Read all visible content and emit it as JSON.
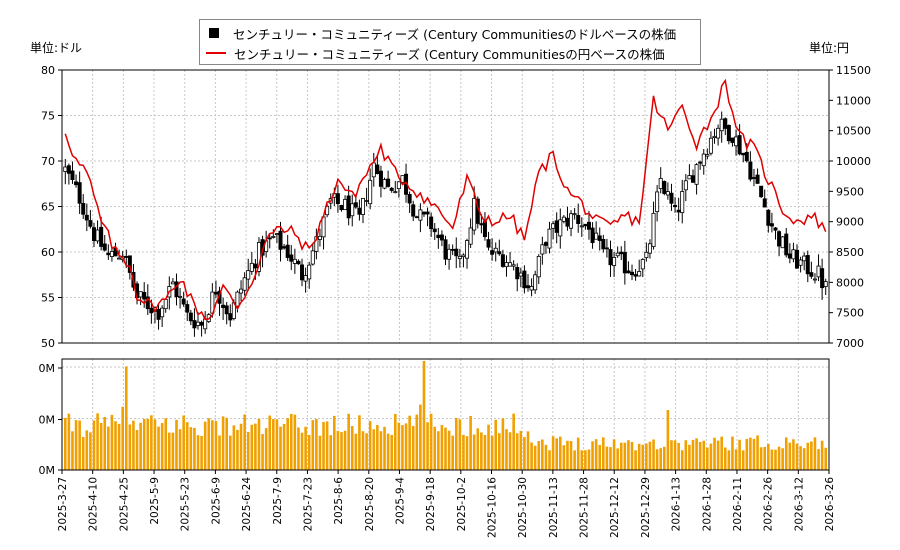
{
  "legend": {
    "usd_label": "センチュリー・コミュニティーズ (Century Communitiesのドルベースの株価",
    "jpy_label": "センチュリー・コミュニティーズ (Century Communitiesの円ベースの株価"
  },
  "units": {
    "left": "単位:ドル",
    "right": "単位:円"
  },
  "colors": {
    "price_red": "#e00000",
    "candle": "#000000",
    "volume": "#f0a000",
    "grid": "#c8c8c8"
  },
  "chart_data": {
    "type": "line",
    "title": "",
    "x_tick_labels": [
      "2025-3-27",
      "2025-4-10",
      "2025-4-25",
      "2025-5-9",
      "2025-5-23",
      "2025-6-9",
      "2025-6-24",
      "2025-7-9",
      "2025-7-23",
      "2025-8-6",
      "2025-8-20",
      "2025-9-4",
      "2025-9-18",
      "2025-10-2",
      "2025-10-16",
      "2025-10-30",
      "2025-11-13",
      "2025-11-28",
      "2025-12-12",
      "2025-12-29",
      "2026-1-13",
      "2026-1-28",
      "2026-2-11",
      "2026-2-26",
      "2026-3-12",
      "2026-3-26"
    ],
    "y_left": {
      "label": "単位:ドル",
      "ylim": [
        50,
        80
      ],
      "ticks": [
        50,
        55,
        60,
        65,
        70,
        75,
        80
      ]
    },
    "y_right": {
      "label": "単位:円",
      "ylim": [
        7000,
        11500
      ],
      "ticks": [
        7000,
        7500,
        8000,
        8500,
        9000,
        9500,
        10000,
        10500,
        11000,
        11500
      ]
    },
    "volume_axis": {
      "tick_labels": [
        "0M",
        "0M",
        "0M"
      ]
    },
    "usd_keypoints": [
      [
        0,
        69.0
      ],
      [
        4,
        66.0
      ],
      [
        8,
        62.0
      ],
      [
        12,
        59.5
      ],
      [
        16,
        60.0
      ],
      [
        20,
        55.0
      ],
      [
        26,
        53.5
      ],
      [
        30,
        56.5
      ],
      [
        34,
        53.0
      ],
      [
        38,
        52.0
      ],
      [
        42,
        56.0
      ],
      [
        46,
        53.0
      ],
      [
        50,
        57.0
      ],
      [
        54,
        60.0
      ],
      [
        58,
        61.5
      ],
      [
        62,
        60.0
      ],
      [
        66,
        57.5
      ],
      [
        70,
        61.0
      ],
      [
        74,
        65.5
      ],
      [
        78,
        65.0
      ],
      [
        82,
        63.5
      ],
      [
        86,
        69.5
      ],
      [
        90,
        67.0
      ],
      [
        94,
        68.0
      ],
      [
        98,
        64.0
      ],
      [
        102,
        63.0
      ],
      [
        106,
        60.0
      ],
      [
        110,
        58.5
      ],
      [
        114,
        65.0
      ],
      [
        118,
        60.0
      ],
      [
        122,
        59.5
      ],
      [
        126,
        58.0
      ],
      [
        130,
        56.0
      ],
      [
        134,
        61.5
      ],
      [
        138,
        63.0
      ],
      [
        142,
        64.0
      ],
      [
        146,
        62.5
      ],
      [
        150,
        59.5
      ],
      [
        154,
        59.0
      ],
      [
        158,
        58.0
      ],
      [
        162,
        59.0
      ],
      [
        166,
        68.0
      ],
      [
        170,
        64.0
      ],
      [
        174,
        68.0
      ],
      [
        178,
        71.0
      ],
      [
        182,
        74.0
      ],
      [
        186,
        73.0
      ],
      [
        190,
        70.0
      ],
      [
        194,
        66.0
      ],
      [
        198,
        62.0
      ],
      [
        202,
        59.5
      ],
      [
        206,
        58.5
      ],
      [
        210,
        57.5
      ],
      [
        212,
        56.0
      ]
    ],
    "jpy_keypoints": [
      [
        0,
        10500
      ],
      [
        3,
        10000
      ],
      [
        6,
        9800
      ],
      [
        10,
        9000
      ],
      [
        14,
        8500
      ],
      [
        18,
        8300
      ],
      [
        20,
        7800
      ],
      [
        24,
        7600
      ],
      [
        28,
        7700
      ],
      [
        32,
        8100
      ],
      [
        36,
        7600
      ],
      [
        40,
        7400
      ],
      [
        44,
        7900
      ],
      [
        48,
        7600
      ],
      [
        52,
        8000
      ],
      [
        56,
        8700
      ],
      [
        60,
        8900
      ],
      [
        64,
        8800
      ],
      [
        68,
        8500
      ],
      [
        72,
        9100
      ],
      [
        76,
        9700
      ],
      [
        80,
        9400
      ],
      [
        84,
        9800
      ],
      [
        88,
        10200
      ],
      [
        92,
        9800
      ],
      [
        96,
        9600
      ],
      [
        100,
        9400
      ],
      [
        104,
        9200
      ],
      [
        108,
        8900
      ],
      [
        112,
        9700
      ],
      [
        116,
        9100
      ],
      [
        120,
        9000
      ],
      [
        124,
        9100
      ],
      [
        128,
        8700
      ],
      [
        132,
        9800
      ],
      [
        136,
        10100
      ],
      [
        140,
        9500
      ],
      [
        144,
        9300
      ],
      [
        148,
        9000
      ],
      [
        152,
        8900
      ],
      [
        156,
        9100
      ],
      [
        160,
        9000
      ],
      [
        164,
        11000
      ],
      [
        168,
        10500
      ],
      [
        172,
        10900
      ],
      [
        176,
        10300
      ],
      [
        180,
        10700
      ],
      [
        184,
        11300
      ],
      [
        188,
        10400
      ],
      [
        192,
        10200
      ],
      [
        196,
        9700
      ],
      [
        200,
        9200
      ],
      [
        204,
        9000
      ],
      [
        208,
        9100
      ],
      [
        212,
        8900
      ]
    ],
    "volume_spikes": [
      [
        16,
        0.58
      ],
      [
        33,
        0.5
      ],
      [
        17,
        0.95
      ],
      [
        100,
        1.0
      ],
      [
        99,
        0.6
      ],
      [
        168,
        0.55
      ]
    ]
  }
}
